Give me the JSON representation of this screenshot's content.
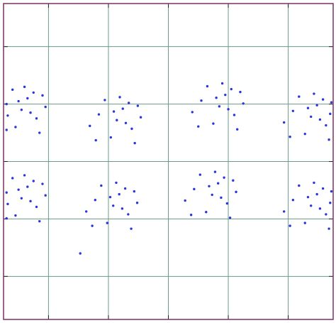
{
  "chart_data": {
    "type": "scatter",
    "xlim": [
      -0.75,
      4.75
    ],
    "ylim": [
      -0.75,
      4.75
    ],
    "xticks": [
      0,
      1,
      2,
      3,
      4
    ],
    "yticks": [
      0,
      1,
      2,
      3,
      4
    ],
    "grid": true,
    "grid_color": "#6a9c8c",
    "frame_color": "#7a3060",
    "series": [
      {
        "color": "#2a35e0",
        "x": [
          -0.35,
          -0.7,
          -0.2,
          -0.55,
          -0.05,
          -0.68,
          -0.4,
          -0.25,
          -0.6,
          -0.15,
          -0.7,
          -0.45,
          -0.3,
          -0.5,
          -0.1,
          1.24,
          0.84,
          1.39,
          1.04,
          1.54,
          0.69,
          1.19,
          1.34,
          0.94,
          1.44,
          0.79,
          1.14,
          1.29,
          1.09,
          1.49,
          2.95,
          2.55,
          3.1,
          2.75,
          3.25,
          2.4,
          2.9,
          3.05,
          2.65,
          3.15,
          2.5,
          2.85,
          3.0,
          2.8,
          3.2,
          4.48,
          4.08,
          4.63,
          4.28,
          4.7,
          3.93,
          4.43,
          4.58,
          4.18,
          4.68,
          4.03,
          4.38,
          4.53,
          4.33,
          4.72,
          -0.35,
          -0.7,
          -0.2,
          -0.55,
          -0.05,
          -0.68,
          -0.4,
          -0.25,
          -0.6,
          -0.15,
          -0.7,
          -0.45,
          -0.3,
          -0.5,
          -0.1,
          1.18,
          0.78,
          1.33,
          0.98,
          1.48,
          0.63,
          1.13,
          1.28,
          0.88,
          1.38,
          0.73,
          1.08,
          1.23,
          1.03,
          1.43,
          0.53,
          2.83,
          2.43,
          2.98,
          2.63,
          3.13,
          2.28,
          2.78,
          2.93,
          2.53,
          3.03,
          2.38,
          2.73,
          2.88,
          2.68,
          3.08,
          4.48,
          4.08,
          4.63,
          4.28,
          4.7,
          3.93,
          4.43,
          4.58,
          4.18,
          4.68,
          4.03,
          4.38,
          4.53,
          4.33,
          4.72
        ],
        "y": [
          3.1,
          3.0,
          2.75,
          2.6,
          2.95,
          2.8,
          3.3,
          3.2,
          3.25,
          2.5,
          2.55,
          2.9,
          2.85,
          3.05,
          3.15,
          2.92,
          2.82,
          2.57,
          2.42,
          2.77,
          2.62,
          3.12,
          3.02,
          3.07,
          2.32,
          2.37,
          2.72,
          2.67,
          2.87,
          2.97,
          3.16,
          3.06,
          2.81,
          2.66,
          3.01,
          2.86,
          3.36,
          3.26,
          3.31,
          2.56,
          2.61,
          2.96,
          2.91,
          3.11,
          3.21,
          2.98,
          2.88,
          2.63,
          2.48,
          2.83,
          2.68,
          3.18,
          3.08,
          3.13,
          2.38,
          2.43,
          2.78,
          2.73,
          2.93,
          3.03,
          1.56,
          1.46,
          1.21,
          1.06,
          1.41,
          1.26,
          1.76,
          1.66,
          1.71,
          0.96,
          1.01,
          1.36,
          1.31,
          1.51,
          1.61,
          1.43,
          1.33,
          1.08,
          0.93,
          1.28,
          1.13,
          1.63,
          1.53,
          1.58,
          0.83,
          0.88,
          1.23,
          1.18,
          1.38,
          1.48,
          0.4,
          1.62,
          1.52,
          1.27,
          1.12,
          1.47,
          1.32,
          1.82,
          1.72,
          1.77,
          1.02,
          1.07,
          1.42,
          1.37,
          1.57,
          1.67,
          1.43,
          1.33,
          1.08,
          0.93,
          1.28,
          1.13,
          1.63,
          1.53,
          1.58,
          0.83,
          0.88,
          1.23,
          1.18,
          1.38,
          1.48
        ]
      }
    ]
  }
}
